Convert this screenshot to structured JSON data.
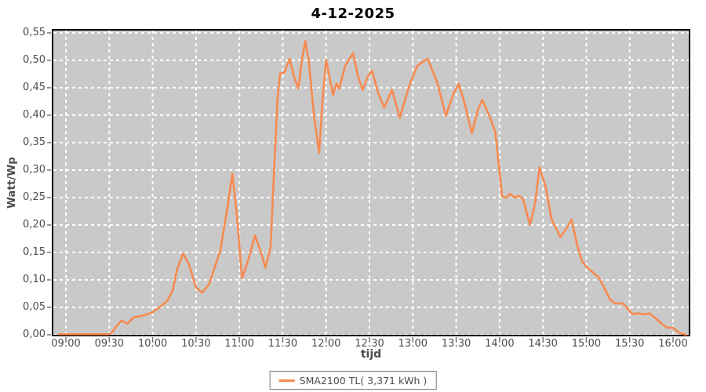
{
  "title": "4-12-2025",
  "legend": {
    "label": "SMA2100 TL( 3,371 kWh )"
  },
  "colors": {
    "line": "#F68A50",
    "plot_bg": "#C9C9C9",
    "grid": "#FFFFFF",
    "border": "#000000",
    "tick": "#777777",
    "axis_text": "#4d4d4d"
  },
  "chart_data": {
    "type": "line",
    "title": "4-12-2025",
    "xlabel": "tijd",
    "ylabel": "Watt/Wp",
    "x_tick_labels": [
      "09:00",
      "09:30",
      "10:00",
      "10:30",
      "11:00",
      "11:30",
      "12:00",
      "12:30",
      "13:00",
      "13:30",
      "14:00",
      "14:30",
      "15:00",
      "15:30",
      "16:00"
    ],
    "x_tick_start_hour": 9.0,
    "x_tick_step_hours": 0.5,
    "y_tick_labels": [
      "0,00",
      "0,05",
      "0,10",
      "0,15",
      "0,20",
      "0,25",
      "0,30",
      "0,35",
      "0,40",
      "0,45",
      "0,50",
      "0,55"
    ],
    "y_tick_start": 0.0,
    "y_tick_step": 0.05,
    "xlim_hours": [
      8.837,
      16.199
    ],
    "ylim": [
      0,
      0.557
    ],
    "grid": "white dashed on gray plot background",
    "legend_position": "bottom-center",
    "series": [
      {
        "name": "SMA2100 TL( 3,371 kWh )",
        "color": "#F68A50",
        "points_hours_vs_watt_per_wp": [
          [
            8.92,
            0.001
          ],
          [
            9.5,
            0.001
          ],
          [
            9.53,
            0.004
          ],
          [
            9.58,
            0.015
          ],
          [
            9.64,
            0.026
          ],
          [
            9.71,
            0.02
          ],
          [
            9.78,
            0.032
          ],
          [
            9.87,
            0.034
          ],
          [
            10.0,
            0.041
          ],
          [
            10.08,
            0.05
          ],
          [
            10.17,
            0.062
          ],
          [
            10.23,
            0.08
          ],
          [
            10.28,
            0.118
          ],
          [
            10.35,
            0.148
          ],
          [
            10.42,
            0.128
          ],
          [
            10.5,
            0.086
          ],
          [
            10.57,
            0.077
          ],
          [
            10.65,
            0.092
          ],
          [
            10.72,
            0.125
          ],
          [
            10.78,
            0.153
          ],
          [
            10.85,
            0.22
          ],
          [
            10.92,
            0.293
          ],
          [
            10.97,
            0.22
          ],
          [
            11.03,
            0.103
          ],
          [
            11.1,
            0.135
          ],
          [
            11.18,
            0.181
          ],
          [
            11.25,
            0.15
          ],
          [
            11.3,
            0.122
          ],
          [
            11.36,
            0.16
          ],
          [
            11.4,
            0.3
          ],
          [
            11.44,
            0.43
          ],
          [
            11.47,
            0.476
          ],
          [
            11.52,
            0.478
          ],
          [
            11.58,
            0.503
          ],
          [
            11.63,
            0.47
          ],
          [
            11.68,
            0.449
          ],
          [
            11.72,
            0.5
          ],
          [
            11.76,
            0.535
          ],
          [
            11.8,
            0.5
          ],
          [
            11.86,
            0.4
          ],
          [
            11.92,
            0.331
          ],
          [
            11.96,
            0.43
          ],
          [
            12.0,
            0.501
          ],
          [
            12.05,
            0.46
          ],
          [
            12.08,
            0.437
          ],
          [
            12.12,
            0.458
          ],
          [
            12.15,
            0.448
          ],
          [
            12.22,
            0.49
          ],
          [
            12.31,
            0.513
          ],
          [
            12.37,
            0.47
          ],
          [
            12.42,
            0.446
          ],
          [
            12.48,
            0.47
          ],
          [
            12.53,
            0.481
          ],
          [
            12.6,
            0.44
          ],
          [
            12.67,
            0.414
          ],
          [
            12.76,
            0.446
          ],
          [
            12.85,
            0.395
          ],
          [
            12.95,
            0.45
          ],
          [
            13.05,
            0.49
          ],
          [
            13.17,
            0.503
          ],
          [
            13.28,
            0.46
          ],
          [
            13.38,
            0.399
          ],
          [
            13.47,
            0.44
          ],
          [
            13.53,
            0.457
          ],
          [
            13.6,
            0.42
          ],
          [
            13.68,
            0.367
          ],
          [
            13.75,
            0.41
          ],
          [
            13.8,
            0.428
          ],
          [
            13.88,
            0.4
          ],
          [
            13.95,
            0.37
          ],
          [
            14.03,
            0.252
          ],
          [
            14.08,
            0.25
          ],
          [
            14.12,
            0.257
          ],
          [
            14.17,
            0.25
          ],
          [
            14.22,
            0.253
          ],
          [
            14.27,
            0.248
          ],
          [
            14.35,
            0.2
          ],
          [
            14.41,
            0.24
          ],
          [
            14.46,
            0.305
          ],
          [
            14.53,
            0.27
          ],
          [
            14.6,
            0.21
          ],
          [
            14.7,
            0.178
          ],
          [
            14.78,
            0.196
          ],
          [
            14.83,
            0.21
          ],
          [
            14.9,
            0.16
          ],
          [
            14.95,
            0.134
          ],
          [
            15.0,
            0.124
          ],
          [
            15.08,
            0.113
          ],
          [
            15.14,
            0.105
          ],
          [
            15.2,
            0.088
          ],
          [
            15.27,
            0.065
          ],
          [
            15.33,
            0.057
          ],
          [
            15.42,
            0.057
          ],
          [
            15.47,
            0.049
          ],
          [
            15.53,
            0.038
          ],
          [
            15.6,
            0.039
          ],
          [
            15.67,
            0.037
          ],
          [
            15.73,
            0.039
          ],
          [
            15.8,
            0.03
          ],
          [
            15.87,
            0.02
          ],
          [
            15.93,
            0.013
          ],
          [
            16.0,
            0.013
          ],
          [
            16.05,
            0.006
          ],
          [
            16.1,
            0.002
          ],
          [
            16.15,
            0.0
          ]
        ]
      }
    ]
  }
}
